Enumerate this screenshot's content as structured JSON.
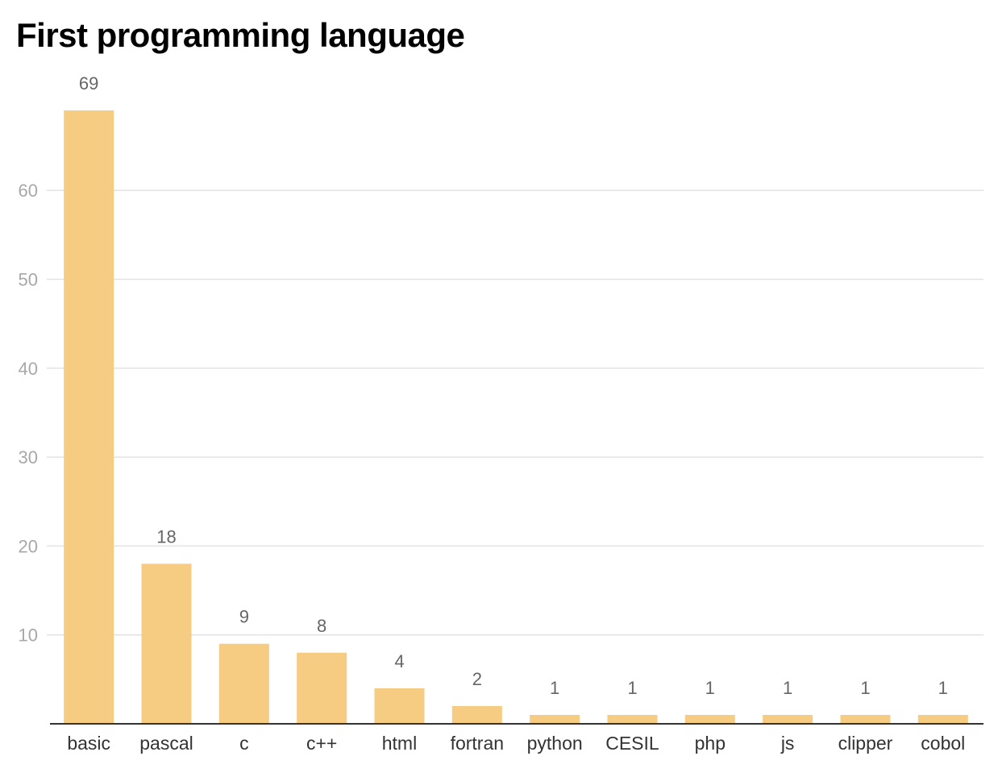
{
  "chart_data": {
    "type": "bar",
    "title": "First programming language",
    "categories": [
      "basic",
      "pascal",
      "c",
      "c++",
      "html",
      "fortran",
      "python",
      "CESIL",
      "php",
      "js",
      "clipper",
      "cobol"
    ],
    "values": [
      69,
      18,
      9,
      8,
      4,
      2,
      1,
      1,
      1,
      1,
      1,
      1
    ],
    "xlabel": "",
    "ylabel": "",
    "ylim": [
      0,
      69
    ],
    "yticks": [
      10,
      20,
      30,
      40,
      50,
      60
    ],
    "grid": true,
    "legend": "none",
    "colors": {
      "bar": "#f6cb82",
      "grid": "#e3e3e3",
      "axis": "#333333",
      "ytick": "#a8a8a8",
      "xtick": "#333333",
      "data_label": "#666666"
    }
  }
}
